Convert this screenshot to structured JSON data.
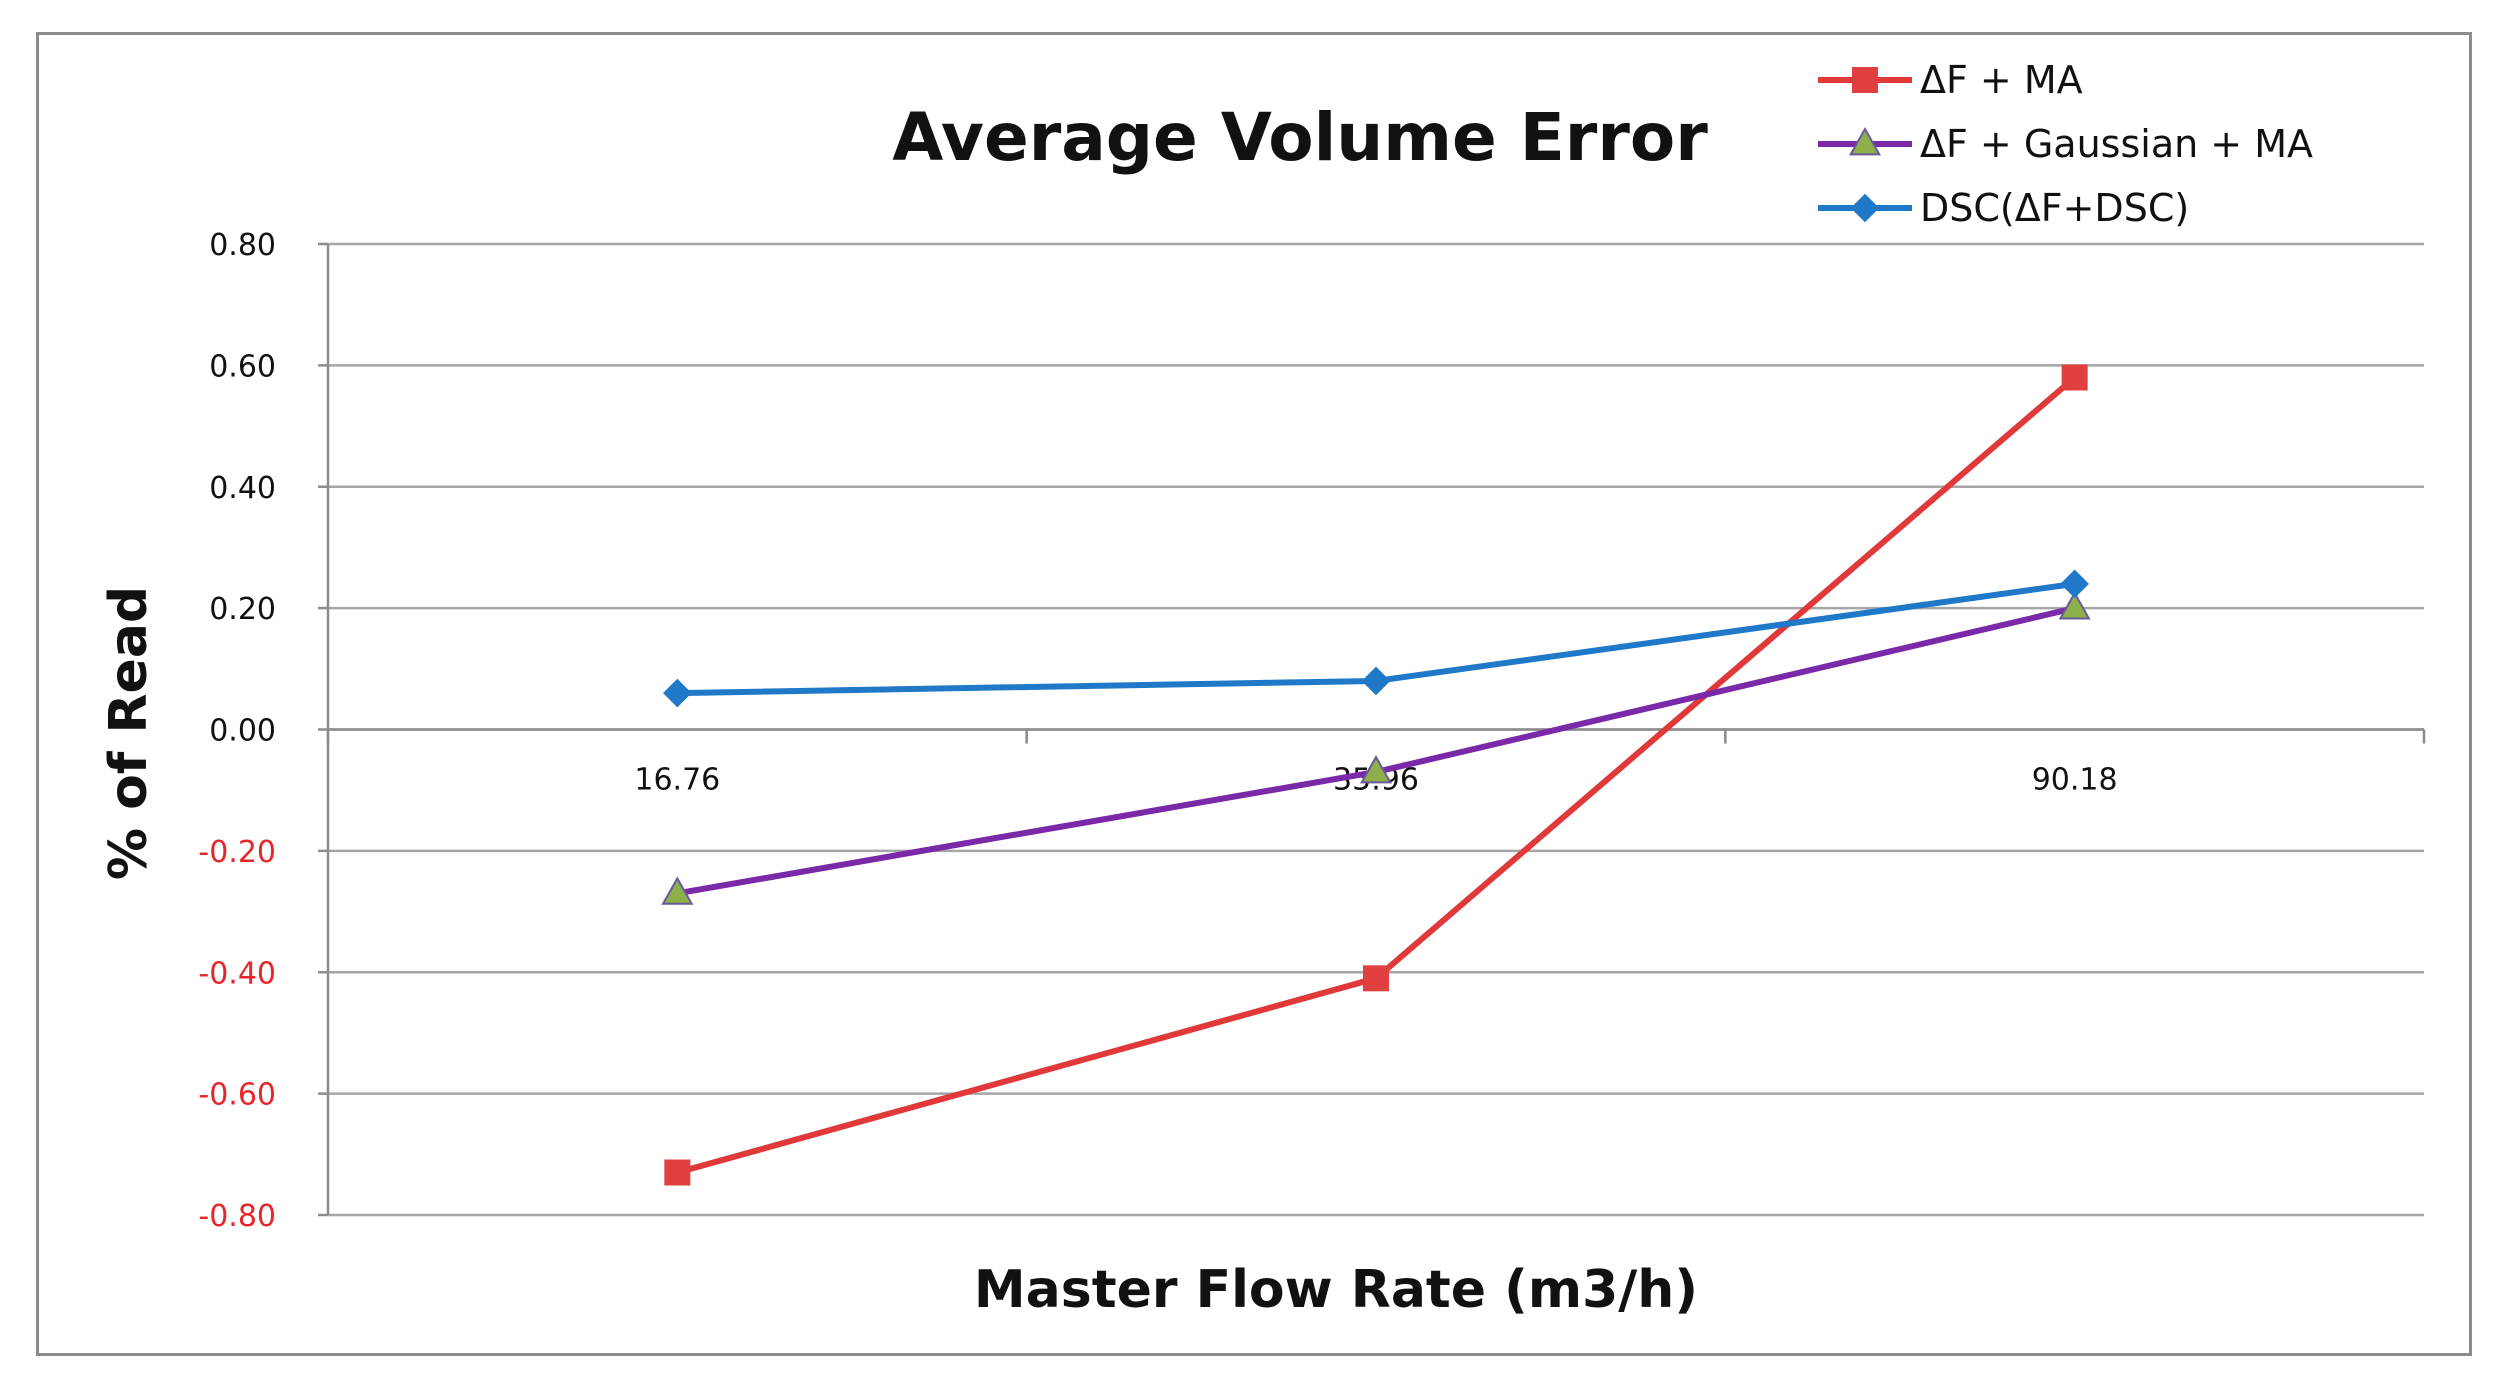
{
  "chart_data": {
    "type": "line",
    "title": "Average Volume Error",
    "xlabel": "Master Flow Rate (m3/h)",
    "ylabel": "% of Read",
    "categories": [
      "16.76",
      "35.96",
      "90.18"
    ],
    "ylim": [
      -0.8,
      0.8
    ],
    "y_ticks": [
      "0.80",
      "0.60",
      "0.40",
      "0.20",
      "0.00",
      "-0.20",
      "-0.40",
      "-0.60",
      "-0.80"
    ],
    "y_tick_values": [
      0.8,
      0.6,
      0.4,
      0.2,
      0.0,
      -0.2,
      -0.4,
      -0.6,
      -0.8
    ],
    "negative_tick_color": "#e8262a",
    "positive_tick_color": "#111111",
    "grid": true,
    "legend_position": "top-right",
    "series": [
      {
        "name": "ΔF + MA",
        "values": [
          -0.73,
          -0.41,
          0.58
        ],
        "color": "#e0393a",
        "marker": "square",
        "marker_color": "#e04040"
      },
      {
        "name": "ΔF + Gaussian + MA",
        "values": [
          -0.27,
          -0.07,
          0.2
        ],
        "color": "#7a2aa8",
        "marker": "triangle",
        "marker_color": "#8db04a"
      },
      {
        "name": "DSC(ΔF+DSC)",
        "values": [
          0.06,
          0.08,
          0.24
        ],
        "color": "#1f78c8",
        "marker": "diamond",
        "marker_color": "#1f78c8"
      }
    ]
  }
}
